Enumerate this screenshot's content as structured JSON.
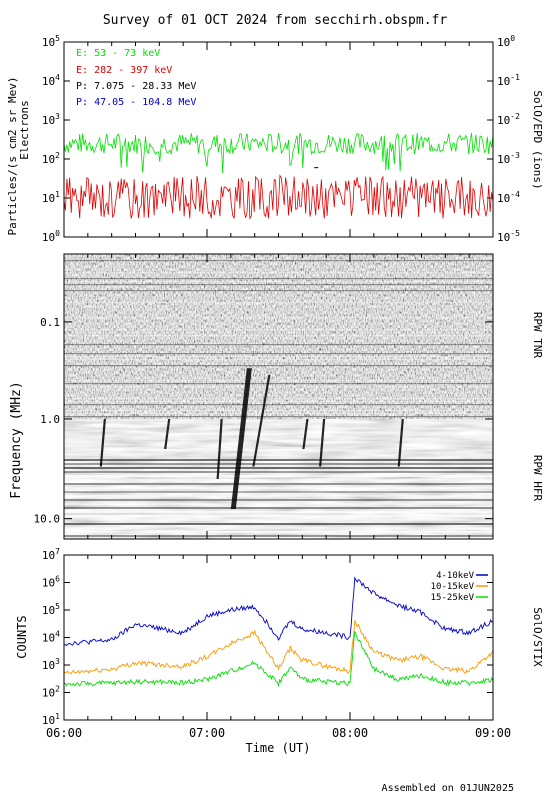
{
  "title": "Survey of 01 OCT 2024 from secchirh.obspm.fr",
  "footer": "Assembled on 01JUN2025",
  "colors": {
    "green": "#00e000",
    "red": "#e00000",
    "black": "#000000",
    "blue": "#0000cc",
    "orange": "#ff9900"
  },
  "chart_data": [
    {
      "type": "line",
      "panel": "epd",
      "right_label": "SolO/EPD (ions)",
      "ylabel_line1": "Particles/(s cm2 sr Mev)",
      "ylabel_line2": "Electrons",
      "y_scale": "log",
      "ylim": [
        1,
        100000
      ],
      "left_ticks": [
        "10^0",
        "10^1",
        "10^2",
        "10^3",
        "10^4",
        "10^5"
      ],
      "right_ticks": [
        "10^-5",
        "10^-4",
        "10^-3",
        "10^-2",
        "10^-1",
        "10^0"
      ],
      "legend": [
        {
          "prefix": "E: ",
          "range": "53 - 73 keV",
          "color": "#00e000"
        },
        {
          "prefix": "E: ",
          "range": "282 - 397 keV",
          "color": "#e00000"
        },
        {
          "prefix": "P: ",
          "range": "7.075 - 28.33 MeV",
          "color": "#000000"
        },
        {
          "prefix": "P: ",
          "range": "47.05 - 104.8 MeV",
          "color": "#0000cc"
        }
      ],
      "series": [
        {
          "range": "53 - 73 keV",
          "color": "#00e000",
          "typical": 250,
          "min": 40,
          "max": 500
        },
        {
          "range": "282 - 397 keV",
          "color": "#e00000",
          "typical": 10,
          "min": 3,
          "max": 40
        },
        {
          "range": "7.075 - 28.33 MeV",
          "color": "#000000",
          "value": 60
        }
      ]
    },
    {
      "type": "heatmap",
      "panel": "rpw",
      "ylabel": "Frequency (MHz)",
      "y_scale": "log",
      "y_reversed": true,
      "y_ticks": [
        "0.1",
        "1.0",
        "10.0"
      ],
      "bands": [
        {
          "label": "RPW TNR",
          "fmin": 0.02,
          "fmax": 1.0
        },
        {
          "label": "RPW HFR",
          "fmin": 1.0,
          "fmax": 16.0
        }
      ],
      "bursts": [
        {
          "time": "06:15",
          "fmin": 1.0,
          "fmax": 3.0
        },
        {
          "time": "06:42",
          "fmin": 1.0,
          "fmax": 2.0
        },
        {
          "time": "07:04",
          "fmin": 1.0,
          "fmax": 4.0
        },
        {
          "time": "07:10",
          "fmin": 0.3,
          "fmax": 8.0
        },
        {
          "time": "07:19",
          "fmin": 0.35,
          "fmax": 3.0
        },
        {
          "time": "07:40",
          "fmin": 1.0,
          "fmax": 2.0
        },
        {
          "time": "07:47",
          "fmin": 1.0,
          "fmax": 3.0
        },
        {
          "time": "08:20",
          "fmin": 1.0,
          "fmax": 3.0
        }
      ]
    },
    {
      "type": "line",
      "panel": "stix",
      "right_label": "SolO/STIX",
      "ylabel": "COUNTS",
      "y_scale": "log",
      "ylim": [
        10,
        10000000
      ],
      "y_ticks": [
        "10^1",
        "10^2",
        "10^3",
        "10^4",
        "10^5",
        "10^6",
        "10^7"
      ],
      "legend_position": "top-right",
      "series": [
        {
          "name": "4-10keV",
          "color": "#0000cc",
          "x": [
            "06:00",
            "06:20",
            "06:30",
            "06:50",
            "07:00",
            "07:10",
            "07:20",
            "07:30",
            "07:35",
            "07:40",
            "07:50",
            "08:00",
            "08:02",
            "08:10",
            "08:20",
            "08:30",
            "08:40",
            "08:50",
            "09:00"
          ],
          "y": [
            6000,
            8000,
            30000,
            15000,
            60000,
            100000,
            130000,
            10000,
            40000,
            20000,
            15000,
            10000,
            1500000,
            400000,
            150000,
            80000,
            20000,
            15000,
            40000
          ]
        },
        {
          "name": "10-15keV",
          "color": "#ff9900",
          "x": [
            "06:00",
            "06:20",
            "06:30",
            "06:50",
            "07:00",
            "07:10",
            "07:20",
            "07:30",
            "07:35",
            "07:40",
            "07:50",
            "08:00",
            "08:02",
            "08:10",
            "08:20",
            "08:30",
            "08:40",
            "08:50",
            "09:00"
          ],
          "y": [
            500,
            700,
            1200,
            900,
            2000,
            6000,
            15000,
            700,
            4000,
            1500,
            900,
            600,
            40000,
            3000,
            1500,
            2000,
            700,
            600,
            3000
          ]
        },
        {
          "name": "15-25keV",
          "color": "#00e000",
          "x": [
            "06:00",
            "06:20",
            "06:30",
            "06:50",
            "07:00",
            "07:10",
            "07:20",
            "07:30",
            "07:35",
            "07:40",
            "07:50",
            "08:00",
            "08:02",
            "08:10",
            "08:20",
            "08:30",
            "08:40",
            "08:50",
            "09:00"
          ],
          "y": [
            200,
            220,
            250,
            230,
            300,
            600,
            1200,
            220,
            800,
            300,
            250,
            220,
            15000,
            700,
            300,
            400,
            230,
            220,
            300
          ]
        }
      ]
    }
  ],
  "x_axis": {
    "label": "Time (UT)",
    "ticks": [
      "06:00",
      "07:00",
      "08:00",
      "09:00"
    ],
    "xlim": [
      "06:00",
      "09:00"
    ]
  }
}
